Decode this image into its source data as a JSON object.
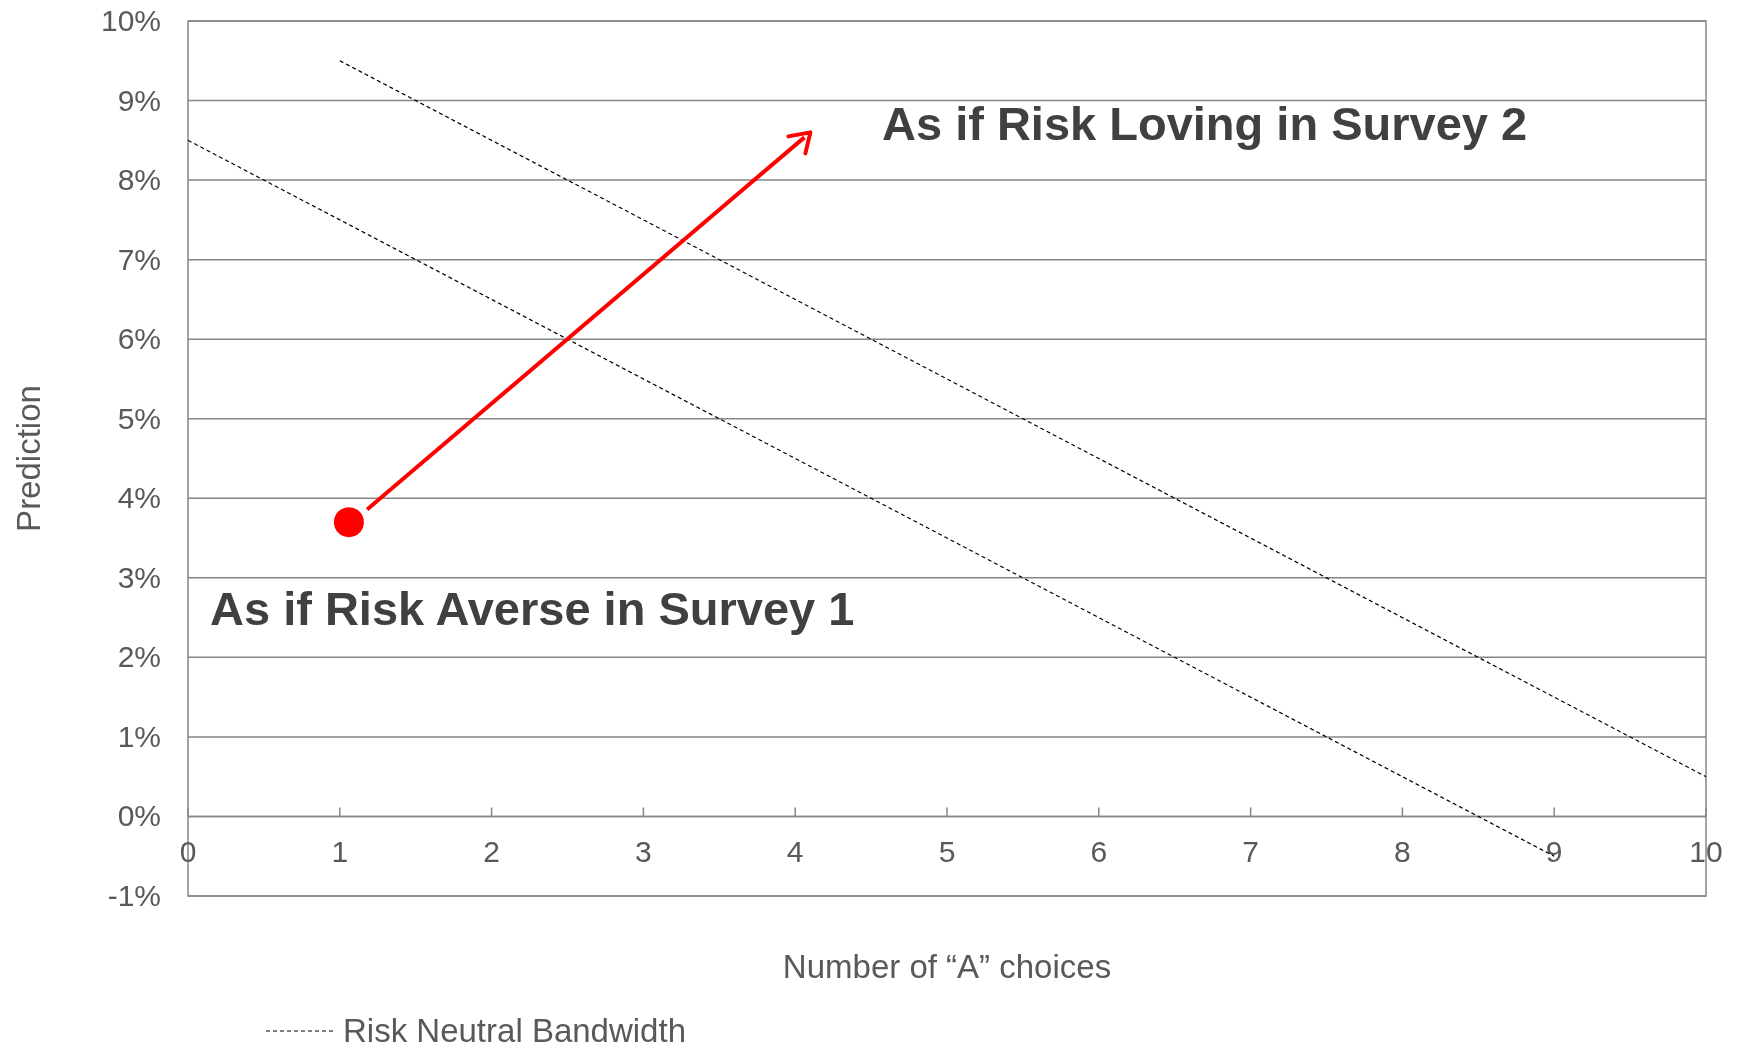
{
  "chart_data": {
    "type": "line",
    "ylabel": "Prediction",
    "xlabel": "Number of “A” choices",
    "xlim": [
      0,
      10
    ],
    "ylim": [
      -1,
      10
    ],
    "xticks": [
      0,
      1,
      2,
      3,
      4,
      5,
      6,
      7,
      8,
      9,
      10
    ],
    "yticks": [
      {
        "value": -1,
        "label": "-1%"
      },
      {
        "value": 0,
        "label": "0%"
      },
      {
        "value": 1,
        "label": "1%"
      },
      {
        "value": 2,
        "label": "2%"
      },
      {
        "value": 3,
        "label": "3%"
      },
      {
        "value": 4,
        "label": "4%"
      },
      {
        "value": 5,
        "label": "5%"
      },
      {
        "value": 6,
        "label": "6%"
      },
      {
        "value": 7,
        "label": "7%"
      },
      {
        "value": 8,
        "label": "8%"
      },
      {
        "value": 9,
        "label": "9%"
      },
      {
        "value": 10,
        "label": "10%"
      }
    ],
    "grid": "y",
    "legend": "bottom left",
    "line_style": "dashed",
    "marker": "none",
    "series": [
      {
        "name": "Risk Neutral Bandwidth",
        "color": "#000000",
        "x": [
          0,
          9
        ],
        "values": [
          8.5,
          -0.5
        ]
      },
      {
        "color": "#000000",
        "x": [
          1,
          10
        ],
        "values": [
          9.5,
          0.5
        ]
      },
      {
        "type": "scatter",
        "color": "#ff0000",
        "x": [
          1.06
        ],
        "values": [
          3.7
        ],
        "marker": "circle"
      }
    ],
    "annotations": [
      "As if Risk Loving in Survey 2",
      "As if Risk Averse in Survey 1"
    ]
  }
}
